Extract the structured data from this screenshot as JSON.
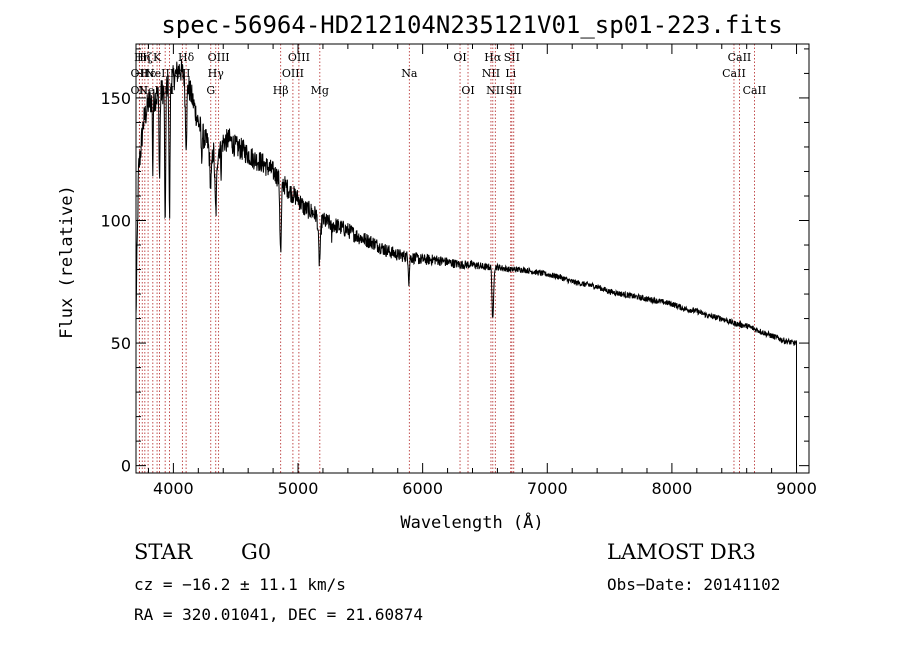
{
  "colors": {
    "ink": "#000000",
    "marker": "#b22222",
    "background": "#ffffff"
  },
  "chart_data": {
    "type": "line",
    "title": "spec-56964-HD212104N235121V01_sp01-223.fits",
    "xlabel": "Wavelength (Å)",
    "ylabel": "Flux (relative)",
    "xlim": [
      3700,
      9100
    ],
    "ylim": [
      -3,
      172
    ],
    "xticks": [
      4000,
      5000,
      6000,
      7000,
      8000,
      9000
    ],
    "yticks": [
      0,
      50,
      100,
      150
    ],
    "x_minor_step": 200,
    "y_minor_step": 10,
    "continuum": {
      "name": "spectrum",
      "x": [
        3700,
        3720,
        3760,
        3800,
        3850,
        3900,
        3950,
        4000,
        4050,
        4100,
        4150,
        4200,
        4250,
        4300,
        4350,
        4400,
        4450,
        4500,
        4550,
        4600,
        4650,
        4700,
        4750,
        4800,
        4850,
        4900,
        4950,
        5000,
        5050,
        5100,
        5150,
        5200,
        5300,
        5400,
        5500,
        5600,
        5700,
        5800,
        5900,
        6000,
        6100,
        6200,
        6300,
        6400,
        6500,
        6600,
        6700,
        6800,
        6900,
        7000,
        7100,
        7200,
        7300,
        7400,
        7500,
        7600,
        7700,
        7800,
        7900,
        8000,
        8100,
        8200,
        8300,
        8400,
        8500,
        8600,
        8700,
        8800,
        8900,
        8980
      ],
      "y": [
        60,
        120,
        140,
        148,
        150,
        152,
        155,
        158,
        162,
        158,
        150,
        140,
        133,
        130,
        128,
        132,
        133,
        130,
        129,
        127,
        125,
        124,
        122,
        120,
        117,
        114,
        111,
        109,
        105,
        104,
        102,
        100,
        98,
        96,
        93,
        91,
        88,
        86,
        85,
        84,
        84,
        83,
        82,
        82,
        81,
        81,
        80,
        80,
        79,
        78,
        77,
        75,
        74,
        73,
        71,
        70,
        69,
        68,
        67,
        66,
        64,
        63,
        61,
        60,
        58,
        57,
        55,
        53,
        51,
        50
      ]
    },
    "absorption_features": [
      {
        "x": 3934,
        "depth": 60,
        "width": 4
      },
      {
        "x": 3969,
        "depth": 55,
        "width": 4
      },
      {
        "x": 3835,
        "depth": 30,
        "width": 3
      },
      {
        "x": 3889,
        "depth": 35,
        "width": 4
      },
      {
        "x": 4102,
        "depth": 25,
        "width": 6
      },
      {
        "x": 4226,
        "depth": 12,
        "width": 3
      },
      {
        "x": 4300,
        "depth": 15,
        "width": 8
      },
      {
        "x": 4340,
        "depth": 25,
        "width": 7
      },
      {
        "x": 4383,
        "depth": 10,
        "width": 3
      },
      {
        "x": 4861,
        "depth": 30,
        "width": 6
      },
      {
        "x": 5172,
        "depth": 18,
        "width": 8
      },
      {
        "x": 5270,
        "depth": 6,
        "width": 3
      },
      {
        "x": 5890,
        "depth": 10,
        "width": 4
      },
      {
        "x": 6563,
        "depth": 22,
        "width": 6
      }
    ],
    "drop_to_zero_at": 9000,
    "noise_amplitude_blue": 6,
    "noise_amplitude_red": 1.2,
    "line_markers": [
      {
        "x": 3727,
        "label": "OII",
        "row": 1
      },
      {
        "x": 3727,
        "label": "OII",
        "row": 2
      },
      {
        "x": 3750,
        "label": "Hη",
        "row": 0
      },
      {
        "x": 3771,
        "label": "Hζ",
        "row": 0
      },
      {
        "x": 3797,
        "label": "Hε",
        "row": 1
      },
      {
        "x": 3835,
        "label": "NeIII",
        "row": 2
      },
      {
        "x": 3869,
        "label": "K",
        "row": 0
      },
      {
        "x": 3889,
        "label": "NeIII",
        "row": 1
      },
      {
        "x": 3934,
        "label": "",
        "row": 0
      },
      {
        "x": 3969,
        "label": "H",
        "row": 2
      },
      {
        "x": 4072,
        "label": "SII",
        "row": 1
      },
      {
        "x": 4102,
        "label": "Hδ",
        "row": 0
      },
      {
        "x": 4300,
        "label": "G",
        "row": 2
      },
      {
        "x": 4340,
        "label": "Hγ",
        "row": 1
      },
      {
        "x": 4363,
        "label": "OIII",
        "row": 0
      },
      {
        "x": 4861,
        "label": "Hβ",
        "row": 2
      },
      {
        "x": 4959,
        "label": "OIII",
        "row": 1
      },
      {
        "x": 5007,
        "label": "OIII",
        "row": 0
      },
      {
        "x": 5175,
        "label": "Mg",
        "row": 2
      },
      {
        "x": 5893,
        "label": "Na",
        "row": 1
      },
      {
        "x": 6300,
        "label": "OI",
        "row": 0
      },
      {
        "x": 6364,
        "label": "OI",
        "row": 2
      },
      {
        "x": 6548,
        "label": "NII",
        "row": 1
      },
      {
        "x": 6563,
        "label": "Hα",
        "row": 0
      },
      {
        "x": 6583,
        "label": "NII",
        "row": 2
      },
      {
        "x": 6707,
        "label": "Li",
        "row": 1
      },
      {
        "x": 6716,
        "label": "SII",
        "row": 0
      },
      {
        "x": 6731,
        "label": "SII",
        "row": 2
      },
      {
        "x": 8498,
        "label": "CaII",
        "row": 1
      },
      {
        "x": 8542,
        "label": "CaII",
        "row": 0
      },
      {
        "x": 8662,
        "label": "CaII",
        "row": 2
      }
    ]
  },
  "info": {
    "object_class": "STAR",
    "subclass": "G0",
    "survey": "LAMOST DR3",
    "redshift": "cz = −16.2 ± 11.1 km/s",
    "obs_date": "Obs−Date: 20141102",
    "coords": "RA = 320.01041, DEC =  21.60874"
  }
}
